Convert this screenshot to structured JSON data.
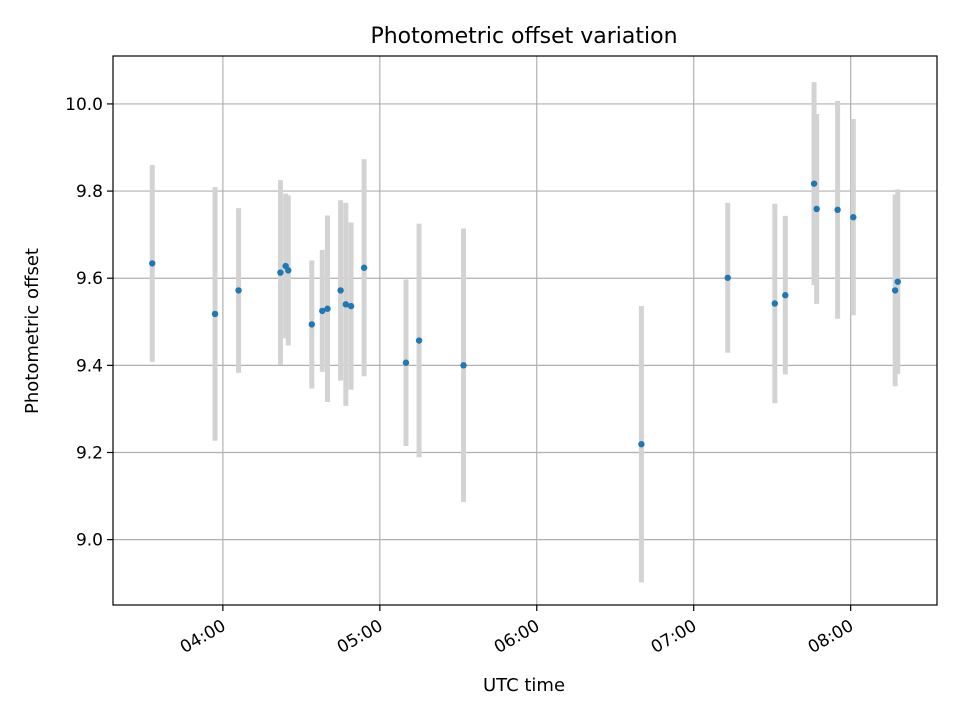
{
  "chart_data": {
    "type": "scatter",
    "title": "Photometric offset variation",
    "xlabel": "UTC time",
    "ylabel": "Photometric offset",
    "x_tick_labels": [
      "04:00",
      "05:00",
      "06:00",
      "07:00",
      "08:00"
    ],
    "y_tick_labels": [
      "9.0",
      "9.2",
      "9.4",
      "9.6",
      "9.8",
      "10.0"
    ],
    "xlim": [
      "03:18",
      "08:33"
    ],
    "ylim": [
      8.85,
      10.11
    ],
    "grid": true,
    "colors": {
      "points": "#1f77b4",
      "errorbars": "#d3d3d3",
      "grid": "#b0b0b0"
    },
    "points": [
      {
        "x": "03:33",
        "y": 9.634,
        "err": 0.226
      },
      {
        "x": "03:57",
        "y": 9.518,
        "err": 0.291
      },
      {
        "x": "04:06",
        "y": 9.572,
        "err": 0.189
      },
      {
        "x": "04:22",
        "y": 9.613,
        "err": 0.212
      },
      {
        "x": "04:24",
        "y": 9.628,
        "err": 0.166
      },
      {
        "x": "04:25",
        "y": 9.618,
        "err": 0.172
      },
      {
        "x": "04:34",
        "y": 9.494,
        "err": 0.147
      },
      {
        "x": "04:38",
        "y": 9.525,
        "err": 0.14
      },
      {
        "x": "04:40",
        "y": 9.53,
        "err": 0.214
      },
      {
        "x": "04:45",
        "y": 9.572,
        "err": 0.207
      },
      {
        "x": "04:47",
        "y": 9.54,
        "err": 0.233
      },
      {
        "x": "04:49",
        "y": 9.536,
        "err": 0.192
      },
      {
        "x": "04:54",
        "y": 9.624,
        "err": 0.249
      },
      {
        "x": "05:10",
        "y": 9.406,
        "err": 0.191
      },
      {
        "x": "05:15",
        "y": 9.457,
        "err": 0.268
      },
      {
        "x": "05:32",
        "y": 9.4,
        "err": 0.314
      },
      {
        "x": "06:40",
        "y": 9.219,
        "err": 0.317
      },
      {
        "x": "07:13",
        "y": 9.601,
        "err": 0.172
      },
      {
        "x": "07:31",
        "y": 9.542,
        "err": 0.229
      },
      {
        "x": "07:35",
        "y": 9.561,
        "err": 0.182
      },
      {
        "x": "07:46",
        "y": 9.817,
        "err": 0.233
      },
      {
        "x": "07:47",
        "y": 9.759,
        "err": 0.218
      },
      {
        "x": "07:55",
        "y": 9.757,
        "err": 0.25
      },
      {
        "x": "08:01",
        "y": 9.74,
        "err": 0.225
      },
      {
        "x": "08:17",
        "y": 9.572,
        "err": 0.22
      },
      {
        "x": "08:18",
        "y": 9.592,
        "err": 0.212
      }
    ]
  }
}
